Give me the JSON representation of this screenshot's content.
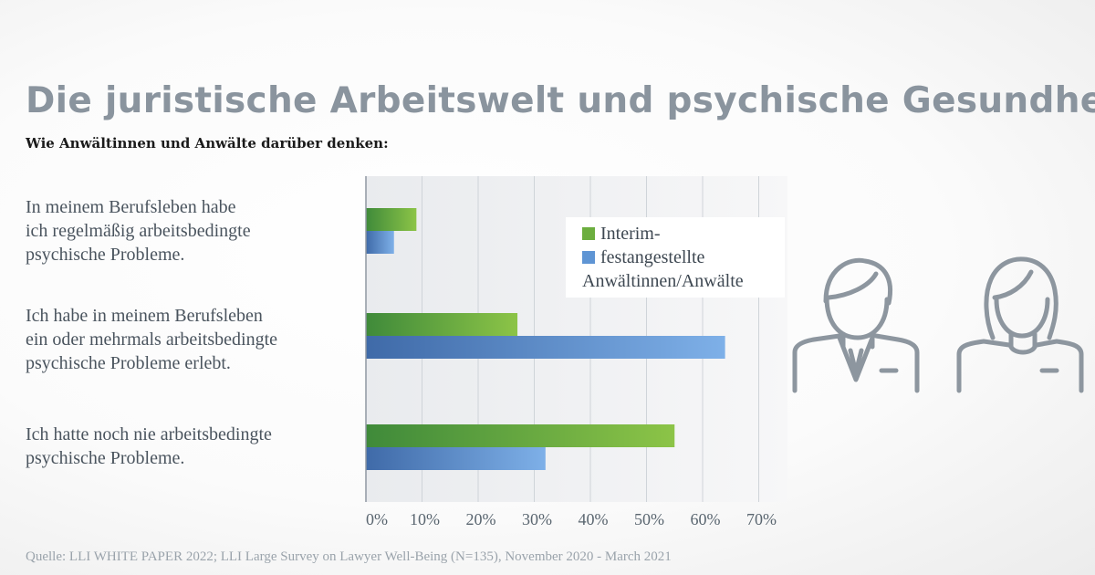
{
  "title": "Die juristische Arbeitswelt und psychische Gesundheit",
  "subtitle": "Wie Anwältinnen und Anwälte darüber denken:",
  "source": "Quelle: LLI WHITE PAPER 2022; LLI Large Survey on Lawyer Well-Being (N=135), November 2020 - March 2021",
  "chart_data": {
    "type": "bar",
    "orientation": "horizontal",
    "categories": [
      [
        "In meinem Berufsleben habe",
        "ich regelmäßig arbeitsbedingte",
        "psychische Probleme."
      ],
      [
        "Ich habe in meinem Berufsleben",
        "ein oder mehrmals arbeitsbedingte",
        "psychische Probleme erlebt."
      ],
      [
        "Ich hatte noch nie arbeitsbedingte",
        "psychische Probleme."
      ]
    ],
    "series": [
      {
        "name": "Interim-",
        "color": "#6cae3f",
        "values": [
          9,
          27,
          55
        ]
      },
      {
        "name": "festangestellte Anwältinnen/Anwälte",
        "color": "#5f95d4",
        "values": [
          5,
          64,
          32
        ]
      }
    ],
    "legend_lines": [
      "Interim-",
      "festangestellte",
      "Anwältinnen/Anwälte"
    ],
    "xlim": [
      0,
      70
    ],
    "x_ticks": [
      "0%",
      "10%",
      "20%",
      "30%",
      "40%",
      "50%",
      "60%",
      "70%"
    ],
    "grid": true,
    "legend_position": "top-right"
  },
  "icons": [
    "male-lawyer-icon",
    "female-lawyer-icon"
  ]
}
